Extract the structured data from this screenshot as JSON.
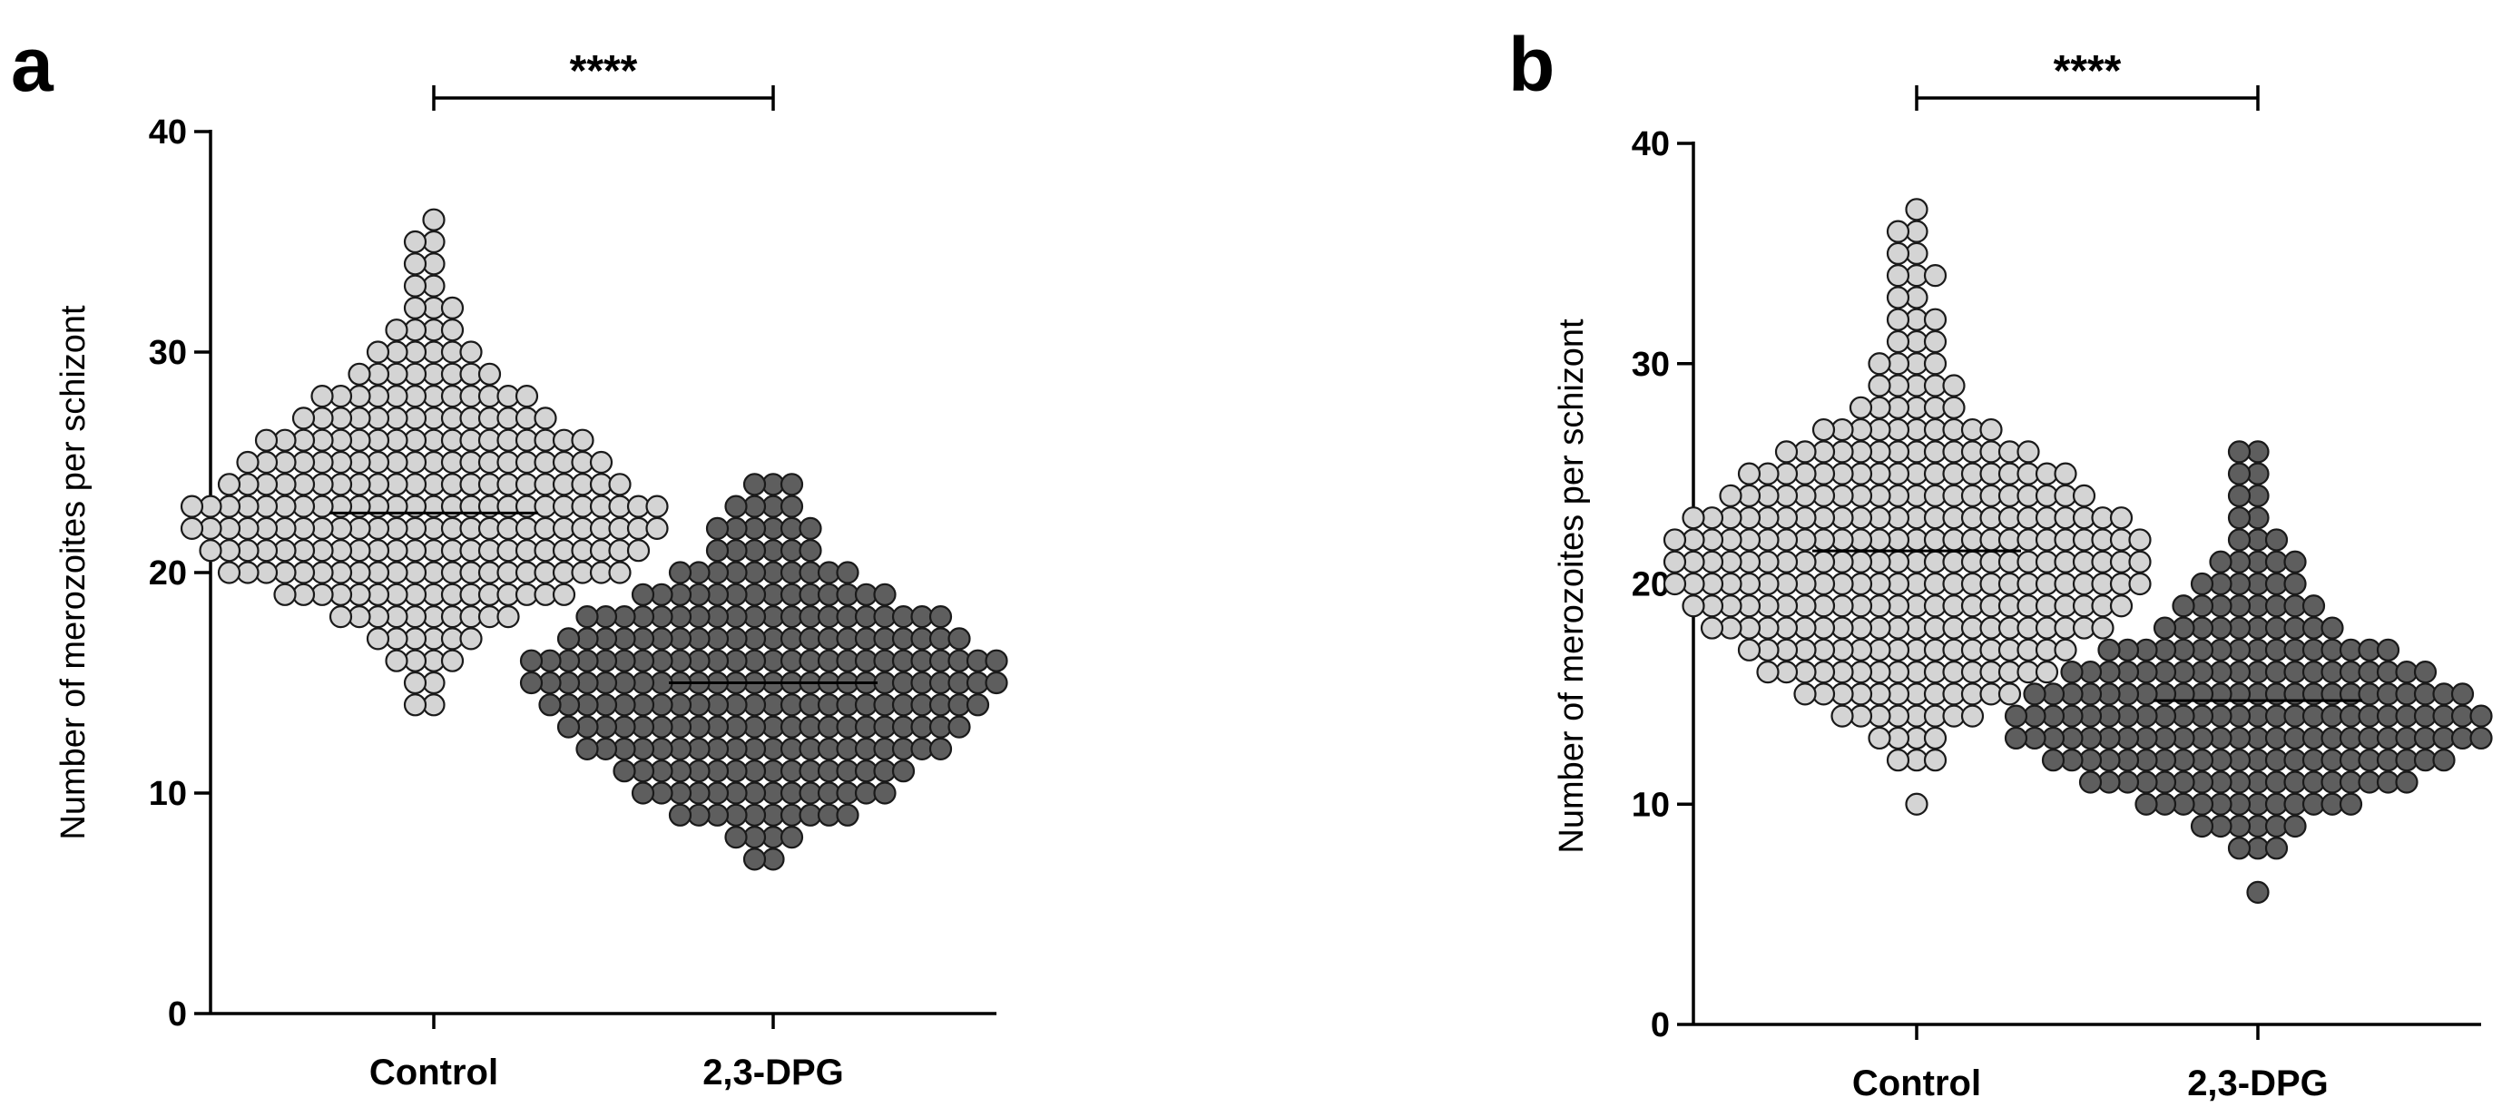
{
  "chart_data": [
    {
      "type": "scatter",
      "panel_label": "a",
      "title": "",
      "xlabel": "",
      "ylabel": "Number of merozoites per schizont",
      "ylim": [
        0,
        40
      ],
      "yticks": [
        "0",
        "10",
        "20",
        "30",
        "40"
      ],
      "categories": [
        "Control",
        "2,3-DPG"
      ],
      "significance": "****",
      "grid": false,
      "colors": {
        "Control": "#d4d4d4",
        "2,3-DPG": "#5e5e5e"
      },
      "series": [
        {
          "category": "Control",
          "mean": 22.7,
          "min": 14,
          "max": 36,
          "counts": {
            "14": 2,
            "15": 2,
            "16": 4,
            "17": 6,
            "18": 10,
            "19": 16,
            "20": 22,
            "21": 24,
            "22": 26,
            "23": 26,
            "24": 22,
            "25": 20,
            "26": 18,
            "27": 14,
            "28": 12,
            "29": 8,
            "30": 6,
            "31": 4,
            "32": 3,
            "33": 2,
            "34": 2,
            "35": 2,
            "36": 1
          }
        },
        {
          "category": "2,3-DPG",
          "mean": 15.0,
          "min": 7,
          "max": 24,
          "counts": {
            "7": 2,
            "8": 4,
            "9": 10,
            "10": 14,
            "11": 16,
            "12": 20,
            "13": 22,
            "14": 24,
            "15": 26,
            "16": 26,
            "17": 22,
            "18": 20,
            "19": 14,
            "20": 10,
            "21": 6,
            "22": 6,
            "23": 4,
            "24": 3
          }
        }
      ]
    },
    {
      "type": "scatter",
      "panel_label": "b",
      "title": "",
      "xlabel": "",
      "ylabel": "Number of merozoites per schizont",
      "ylim": [
        0,
        40
      ],
      "yticks": [
        "0",
        "10",
        "20",
        "30",
        "40"
      ],
      "categories": [
        "Control",
        "2,3-DPG"
      ],
      "significance": "****",
      "grid": false,
      "colors": {
        "Control": "#d4d4d4",
        "2,3-DPG": "#5e5e5e"
      },
      "series": [
        {
          "category": "Control",
          "mean": 21.5,
          "min": 10,
          "max": 37,
          "counts": {
            "10": 1,
            "12": 3,
            "13": 4,
            "14": 8,
            "15": 12,
            "16": 16,
            "17": 18,
            "18": 22,
            "19": 24,
            "20": 26,
            "21": 26,
            "22": 26,
            "23": 24,
            "24": 20,
            "25": 18,
            "26": 14,
            "27": 10,
            "28": 6,
            "29": 5,
            "30": 4,
            "31": 3,
            "32": 3,
            "33": 2,
            "34": 3,
            "35": 2,
            "36": 2,
            "37": 1
          }
        },
        {
          "category": "2,3-DPG",
          "mean": 14.7,
          "min": 6,
          "max": 26,
          "counts": {
            "6": 1,
            "8": 3,
            "9": 6,
            "10": 12,
            "11": 18,
            "12": 22,
            "13": 26,
            "14": 26,
            "15": 24,
            "16": 20,
            "17": 16,
            "18": 10,
            "19": 8,
            "20": 6,
            "21": 5,
            "22": 3,
            "23": 2,
            "24": 2,
            "25": 2,
            "26": 2
          }
        }
      ]
    }
  ]
}
